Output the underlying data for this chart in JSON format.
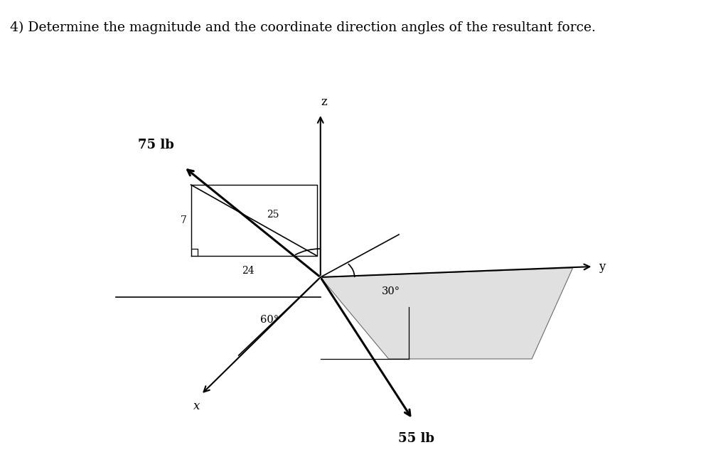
{
  "title": "4) Determine the magnitude and the coordinate direction angles of the resultant force.",
  "title_fontsize": 13.5,
  "background_color": "#ffffff",
  "text_color": "#000000",
  "label_75lb": "75 lb",
  "label_55lb": "55 lb",
  "label_25": "25",
  "label_7": "7",
  "label_24": "24",
  "label_60deg": "60°",
  "label_30deg": "30°",
  "label_x": "x",
  "label_y": "y",
  "label_z": "z",
  "ox": 0.46,
  "oy": 0.44
}
